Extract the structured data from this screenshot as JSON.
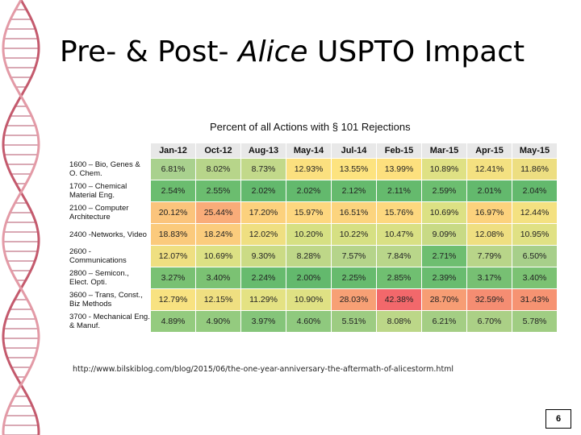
{
  "slide": {
    "title_pre": "Pre- & Post- ",
    "title_italic": "Alice",
    "title_post": " USPTO Impact",
    "source_url": "http://www.bilskiblog.com/blog/2015/06/the-one-year-anniversary-the-aftermath-of-alicestorm.html",
    "page_number": "6"
  },
  "table": {
    "title": "Percent of all Actions with § 101 Rejections",
    "columns": [
      "Jan-12",
      "Oct-12",
      "Aug-13",
      "May-14",
      "Jul-14",
      "Feb-15",
      "Mar-15",
      "Apr-15",
      "May-15"
    ],
    "rows": [
      {
        "label": "1600 – Bio, Genes & O. Chem.",
        "cells": [
          "6.81%",
          "8.02%",
          "8.73%",
          "12.93%",
          "13.55%",
          "13.99%",
          "10.89%",
          "12.41%",
          "11.86%"
        ],
        "colors": [
          "#a9d18e",
          "#b7d58a",
          "#c2d98a",
          "#fbe07f",
          "#fde37f",
          "#fde07e",
          "#dfe184",
          "#f4e181",
          "#edde81"
        ]
      },
      {
        "label": "1700 – Chemical Material Eng.",
        "cells": [
          "2.54%",
          "2.55%",
          "2.02%",
          "2.02%",
          "2.12%",
          "2.11%",
          "2.59%",
          "2.01%",
          "2.04%"
        ],
        "colors": [
          "#6bbd6f",
          "#6bbd6f",
          "#63b96d",
          "#63b96d",
          "#65ba6d",
          "#65ba6d",
          "#6cbe70",
          "#63b96d",
          "#63b96d"
        ]
      },
      {
        "label": "2100 – Computer Architecture",
        "cells": [
          "20.12%",
          "25.44%",
          "17.20%",
          "15.97%",
          "16.51%",
          "15.76%",
          "10.69%",
          "16.97%",
          "12.44%"
        ],
        "colors": [
          "#fbc47c",
          "#f9ac79",
          "#fcd17d",
          "#fdd77f",
          "#fcd47e",
          "#fdd87f",
          "#dce184",
          "#fcd27d",
          "#f4e181"
        ]
      },
      {
        "label": "2400 -Networks, Video",
        "cells": [
          "18.83%",
          "18.24%",
          "12.02%",
          "10.20%",
          "10.22%",
          "10.47%",
          "9.09%",
          "12.08%",
          "10.95%"
        ],
        "colors": [
          "#fbca7c",
          "#fbcc7d",
          "#efdf81",
          "#d6e083",
          "#d6e083",
          "#d9e084",
          "#c8da85",
          "#efdf81",
          "#e0e184"
        ]
      },
      {
        "label": "2600 - Communications",
        "cells": [
          "12.07%",
          "10.69%",
          "9.30%",
          "8.28%",
          "7.57%",
          "7.84%",
          "2.71%",
          "7.79%",
          "6.50%"
        ],
        "colors": [
          "#efdf81",
          "#dce184",
          "#cbdb85",
          "#bed788",
          "#b5d48a",
          "#b9d68a",
          "#6ebe70",
          "#b8d589",
          "#a7cf8a"
        ]
      },
      {
        "label": "2800 – Semicon., Elect. Opti.",
        "cells": [
          "3.27%",
          "3.40%",
          "2.24%",
          "2.00%",
          "2.25%",
          "2.85%",
          "2.39%",
          "3.17%",
          "3.40%"
        ],
        "colors": [
          "#79c173",
          "#7bc273",
          "#67bb6e",
          "#63b96d",
          "#67bb6e",
          "#70bf71",
          "#69bc6f",
          "#77c073",
          "#7bc273"
        ]
      },
      {
        "label": "3600 – Trans, Const., Biz Methods",
        "cells": [
          "12.79%",
          "12.15%",
          "11.29%",
          "10.90%",
          "28.03%",
          "42.38%",
          "28.70%",
          "32.59%",
          "31.43%"
        ],
        "colors": [
          "#f8e281",
          "#efdf81",
          "#e4e283",
          "#dfe184",
          "#f7a075",
          "#f2686b",
          "#f79d74",
          "#f58d72",
          "#f69372"
        ]
      },
      {
        "label": "3700 - Mechanical Eng. & Manuf.",
        "cells": [
          "4.89%",
          "4.90%",
          "3.97%",
          "4.60%",
          "5.51%",
          "8.08%",
          "6.21%",
          "6.70%",
          "5.78%"
        ],
        "colors": [
          "#94cb7f",
          "#94cb7f",
          "#85c57a",
          "#8fc97e",
          "#9dcc82",
          "#bcd788",
          "#a4ce84",
          "#abd086",
          "#a0cd83"
        ]
      }
    ]
  }
}
